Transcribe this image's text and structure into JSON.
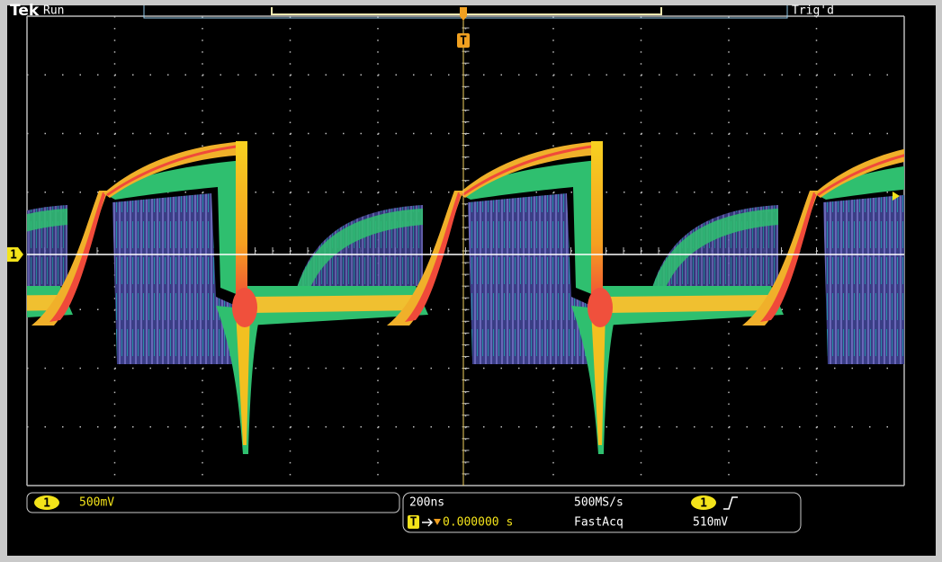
{
  "header": {
    "brand": "Tek",
    "status": "Run",
    "trigger_status": "Trig'd"
  },
  "markers": {
    "trigger_position": "T",
    "channel_ground": "1"
  },
  "channel_readout": {
    "channel": "1",
    "scale": "500mV"
  },
  "timebase_readout": {
    "time_per_div": "200ns",
    "sample_rate": "500MS/s",
    "trigger_marker": "T",
    "position": "0.000000 s",
    "mode": "FastAcq",
    "trigger_channel": "1",
    "trigger_level": "510mV"
  }
}
